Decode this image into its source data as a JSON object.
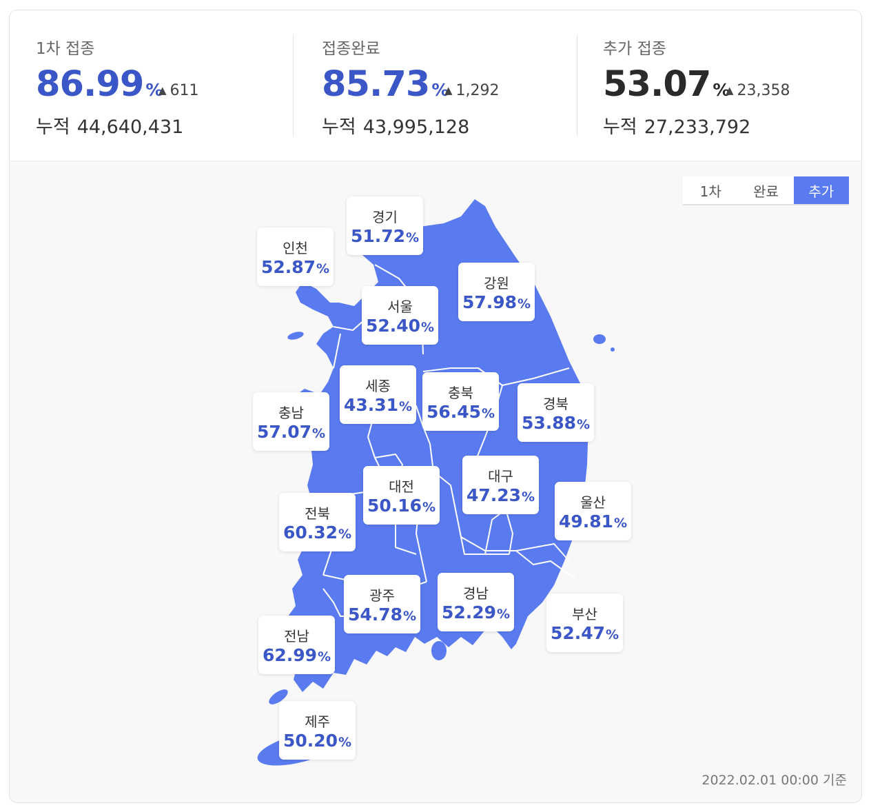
{
  "colors": {
    "accent": "#3b56c7",
    "map_fill": "#5a7bf0",
    "active_tab": "#5a7bf0"
  },
  "summary": [
    {
      "label": "1차 접종",
      "percent": "86.99",
      "unit": "%",
      "delta": "611",
      "cum_label": "누적",
      "cum_value": "44,640,431",
      "tone": "blue"
    },
    {
      "label": "접종완료",
      "percent": "85.73",
      "unit": "%",
      "delta": "1,292",
      "cum_label": "누적",
      "cum_value": "43,995,128",
      "tone": "blue"
    },
    {
      "label": "추가 접종",
      "percent": "53.07",
      "unit": "%",
      "delta": "23,358",
      "cum_label": "누적",
      "cum_value": "27,233,792",
      "tone": "dark"
    }
  ],
  "delta_icon": "triangle-up-icon",
  "toggle": {
    "options": [
      "1차",
      "완료",
      "추가"
    ],
    "active": "추가"
  },
  "regions": {
    "gyeonggi": {
      "name": "경기",
      "value": "51.72"
    },
    "incheon": {
      "name": "인천",
      "value": "52.87"
    },
    "gangwon": {
      "name": "강원",
      "value": "57.98"
    },
    "seoul": {
      "name": "서울",
      "value": "52.40"
    },
    "sejong": {
      "name": "세종",
      "value": "43.31"
    },
    "chungbuk": {
      "name": "충북",
      "value": "56.45"
    },
    "gyeongbuk": {
      "name": "경북",
      "value": "53.88"
    },
    "chungnam": {
      "name": "충남",
      "value": "57.07"
    },
    "daegu": {
      "name": "대구",
      "value": "47.23"
    },
    "daejeon": {
      "name": "대전",
      "value": "50.16"
    },
    "ulsan": {
      "name": "울산",
      "value": "49.81"
    },
    "jeonbuk": {
      "name": "전북",
      "value": "60.32"
    },
    "gwangju": {
      "name": "광주",
      "value": "54.78"
    },
    "gyeongnam": {
      "name": "경남",
      "value": "52.29"
    },
    "busan": {
      "name": "부산",
      "value": "52.47"
    },
    "jeonnam": {
      "name": "전남",
      "value": "62.99"
    },
    "jeju": {
      "name": "제주",
      "value": "50.20"
    }
  },
  "region_unit": "%",
  "footnote": "2022.02.01 00:00 기준"
}
